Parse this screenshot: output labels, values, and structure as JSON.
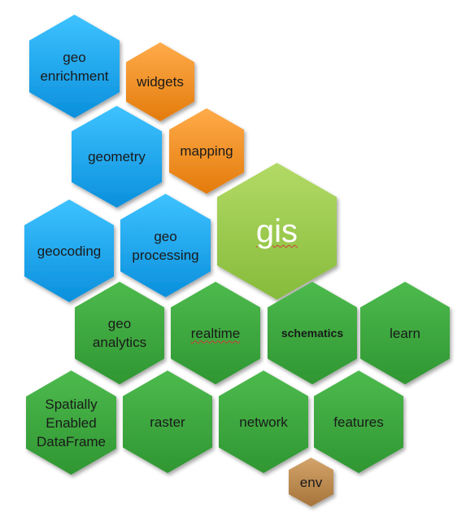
{
  "palette": {
    "blue": [
      "#3ec2ff",
      "#0a8fdc"
    ],
    "orange": [
      "#ffab4a",
      "#e37b0c"
    ],
    "lime": [
      "#b2da66",
      "#86bb3a"
    ],
    "green": [
      "#4dba4d",
      "#2f9632"
    ],
    "brown": [
      "#d3a46b",
      "#a6743a"
    ]
  },
  "modules": [
    {
      "id": "geoenrichment",
      "label": "geo\nenrichment",
      "color": "blue"
    },
    {
      "id": "widgets",
      "label": "widgets",
      "color": "orange"
    },
    {
      "id": "geometry",
      "label": "geometry",
      "color": "blue"
    },
    {
      "id": "mapping",
      "label": "mapping",
      "color": "orange"
    },
    {
      "id": "gis",
      "label": "gis",
      "color": "lime"
    },
    {
      "id": "geocoding",
      "label": "geocoding",
      "color": "blue"
    },
    {
      "id": "geoprocessing",
      "label": "geo\nprocessing",
      "color": "blue"
    },
    {
      "id": "geoanalytics",
      "label": "geo\nanalytics",
      "color": "green"
    },
    {
      "id": "realtime",
      "label": "realtime",
      "color": "green"
    },
    {
      "id": "schematics",
      "label": "schematics",
      "color": "green"
    },
    {
      "id": "learn",
      "label": "learn",
      "color": "green"
    },
    {
      "id": "sedf",
      "label": "Spatially\nEnabled\nDataFrame",
      "color": "green"
    },
    {
      "id": "raster",
      "label": "raster",
      "color": "green"
    },
    {
      "id": "network",
      "label": "network",
      "color": "green"
    },
    {
      "id": "features",
      "label": "features",
      "color": "green"
    },
    {
      "id": "env",
      "label": "env",
      "color": "brown"
    }
  ]
}
